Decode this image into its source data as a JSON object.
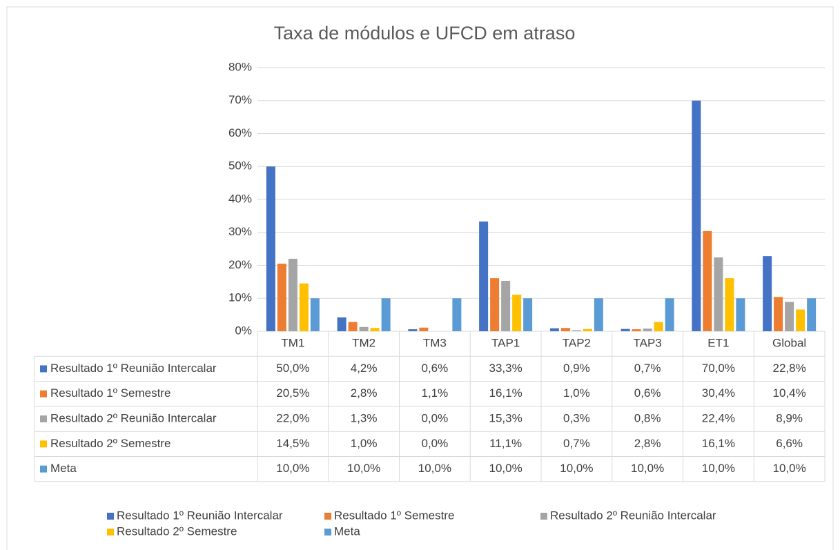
{
  "chart_data": {
    "type": "bar",
    "title": "Taxa de módulos e UFCD em atraso",
    "categories": [
      "TM1",
      "TM2",
      "TM3",
      "TAP1",
      "TAP2",
      "TAP3",
      "ET1",
      "Global"
    ],
    "series": [
      {
        "name": "Resultado 1º Reunião Intercalar",
        "color": "#4472C4",
        "values": [
          50.0,
          4.2,
          0.6,
          33.3,
          0.9,
          0.7,
          70.0,
          22.8
        ],
        "value_labels": [
          "50,0%",
          "4,2%",
          "0,6%",
          "33,3%",
          "0,9%",
          "0,7%",
          "70,0%",
          "22,8%"
        ]
      },
      {
        "name": "Resultado 1º Semestre",
        "color": "#ED7D31",
        "values": [
          20.5,
          2.8,
          1.1,
          16.1,
          1.0,
          0.6,
          30.4,
          10.4
        ],
        "value_labels": [
          "20,5%",
          "2,8%",
          "1,1%",
          "16,1%",
          "1,0%",
          "0,6%",
          "30,4%",
          "10,4%"
        ]
      },
      {
        "name": "Resultado 2º Reunião Intercalar",
        "color": "#A5A5A5",
        "values": [
          22.0,
          1.3,
          0.0,
          15.3,
          0.3,
          0.8,
          22.4,
          8.9
        ],
        "value_labels": [
          "22,0%",
          "1,3%",
          "0,0%",
          "15,3%",
          "0,3%",
          "0,8%",
          "22,4%",
          "8,9%"
        ]
      },
      {
        "name": "Resultado 2º Semestre",
        "color": "#FFC000",
        "values": [
          14.5,
          1.0,
          0.0,
          11.1,
          0.7,
          2.8,
          16.1,
          6.6
        ],
        "value_labels": [
          "14,5%",
          "1,0%",
          "0,0%",
          "11,1%",
          "0,7%",
          "2,8%",
          "16,1%",
          "6,6%"
        ]
      },
      {
        "name": "Meta",
        "color": "#5B9BD5",
        "values": [
          10.0,
          10.0,
          10.0,
          10.0,
          10.0,
          10.0,
          10.0,
          10.0
        ],
        "value_labels": [
          "10,0%",
          "10,0%",
          "10,0%",
          "10,0%",
          "10,0%",
          "10,0%",
          "10,0%",
          "10,0%"
        ]
      }
    ],
    "ylim": [
      0,
      80
    ],
    "yticks": [
      {
        "value": 0,
        "label": "0%"
      },
      {
        "value": 10,
        "label": "10%"
      },
      {
        "value": 20,
        "label": "20%"
      },
      {
        "value": 30,
        "label": "30%"
      },
      {
        "value": 40,
        "label": "40%"
      },
      {
        "value": 50,
        "label": "50%"
      },
      {
        "value": 60,
        "label": "60%"
      },
      {
        "value": 70,
        "label": "70%"
      },
      {
        "value": 80,
        "label": "80%"
      }
    ],
    "grid": true,
    "legend": "bottom"
  }
}
